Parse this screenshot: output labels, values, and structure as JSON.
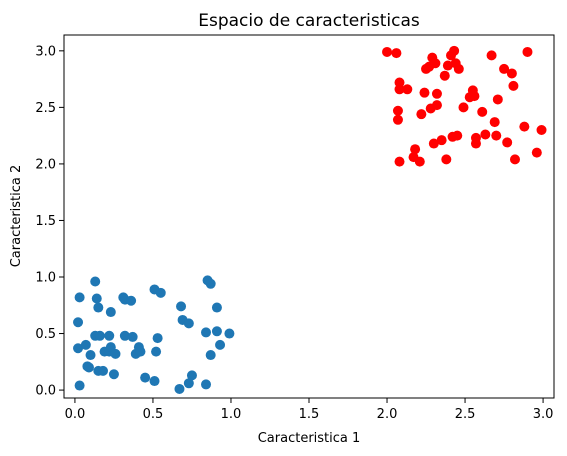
{
  "chart_data": {
    "type": "scatter",
    "title": "Espacio de caracteristicas",
    "xlabel": "Caracteristica 1",
    "ylabel": "Caracteristica 2",
    "xlim": [
      -0.07,
      3.07
    ],
    "ylim": [
      -0.07,
      3.14
    ],
    "xticks": [
      "0.0",
      "0.5",
      "1.0",
      "1.5",
      "2.0",
      "2.5",
      "3.0"
    ],
    "yticks": [
      "0.0",
      "0.5",
      "1.0",
      "1.5",
      "2.0",
      "2.5",
      "3.0"
    ],
    "grid": false,
    "series": [
      {
        "color": "#1f77b4",
        "points": [
          [
            0.03,
            0.82
          ],
          [
            0.02,
            0.6
          ],
          [
            0.02,
            0.37
          ],
          [
            0.07,
            0.4
          ],
          [
            0.08,
            0.21
          ],
          [
            0.09,
            0.2
          ],
          [
            0.1,
            0.31
          ],
          [
            0.03,
            0.04
          ],
          [
            0.13,
            0.96
          ],
          [
            0.14,
            0.81
          ],
          [
            0.15,
            0.73
          ],
          [
            0.13,
            0.48
          ],
          [
            0.16,
            0.48
          ],
          [
            0.15,
            0.17
          ],
          [
            0.18,
            0.17
          ],
          [
            0.19,
            0.34
          ],
          [
            0.22,
            0.34
          ],
          [
            0.22,
            0.48
          ],
          [
            0.23,
            0.69
          ],
          [
            0.23,
            0.38
          ],
          [
            0.25,
            0.14
          ],
          [
            0.26,
            0.32
          ],
          [
            0.31,
            0.82
          ],
          [
            0.32,
            0.48
          ],
          [
            0.32,
            0.8
          ],
          [
            0.36,
            0.79
          ],
          [
            0.37,
            0.47
          ],
          [
            0.39,
            0.32
          ],
          [
            0.41,
            0.38
          ],
          [
            0.42,
            0.34
          ],
          [
            0.45,
            0.11
          ],
          [
            0.51,
            0.08
          ],
          [
            0.51,
            0.89
          ],
          [
            0.52,
            0.34
          ],
          [
            0.55,
            0.86
          ],
          [
            0.53,
            0.46
          ],
          [
            0.67,
            0.01
          ],
          [
            0.68,
            0.74
          ],
          [
            0.69,
            0.62
          ],
          [
            0.73,
            0.59
          ],
          [
            0.73,
            0.06
          ],
          [
            0.75,
            0.13
          ],
          [
            0.84,
            0.51
          ],
          [
            0.84,
            0.05
          ],
          [
            0.85,
            0.97
          ],
          [
            0.87,
            0.94
          ],
          [
            0.87,
            0.31
          ],
          [
            0.91,
            0.52
          ],
          [
            0.91,
            0.73
          ],
          [
            0.93,
            0.4
          ],
          [
            0.99,
            0.5
          ]
        ]
      },
      {
        "color": "#ff0000",
        "points": [
          [
            2.0,
            2.99
          ],
          [
            2.06,
            2.98
          ],
          [
            2.08,
            2.72
          ],
          [
            2.08,
            2.66
          ],
          [
            2.07,
            2.47
          ],
          [
            2.07,
            2.39
          ],
          [
            2.08,
            2.02
          ],
          [
            2.13,
            2.66
          ],
          [
            2.18,
            2.13
          ],
          [
            2.17,
            2.06
          ],
          [
            2.21,
            2.02
          ],
          [
            2.22,
            2.44
          ],
          [
            2.24,
            2.63
          ],
          [
            2.25,
            2.84
          ],
          [
            2.27,
            2.86
          ],
          [
            2.28,
            2.49
          ],
          [
            2.29,
            2.94
          ],
          [
            2.3,
            2.18
          ],
          [
            2.31,
            2.89
          ],
          [
            2.32,
            2.52
          ],
          [
            2.32,
            2.62
          ],
          [
            2.35,
            2.21
          ],
          [
            2.37,
            2.78
          ],
          [
            2.38,
            2.04
          ],
          [
            2.39,
            2.87
          ],
          [
            2.41,
            2.96
          ],
          [
            2.42,
            2.24
          ],
          [
            2.43,
            3.0
          ],
          [
            2.44,
            2.89
          ],
          [
            2.45,
            2.25
          ],
          [
            2.46,
            2.84
          ],
          [
            2.49,
            2.5
          ],
          [
            2.53,
            2.59
          ],
          [
            2.55,
            2.65
          ],
          [
            2.56,
            2.6
          ],
          [
            2.57,
            2.23
          ],
          [
            2.57,
            2.18
          ],
          [
            2.61,
            2.46
          ],
          [
            2.63,
            2.26
          ],
          [
            2.67,
            2.96
          ],
          [
            2.69,
            2.37
          ],
          [
            2.7,
            2.25
          ],
          [
            2.71,
            2.57
          ],
          [
            2.75,
            2.84
          ],
          [
            2.77,
            2.19
          ],
          [
            2.8,
            2.8
          ],
          [
            2.81,
            2.69
          ],
          [
            2.82,
            2.04
          ],
          [
            2.88,
            2.33
          ],
          [
            2.9,
            2.99
          ],
          [
            2.96,
            2.1
          ],
          [
            2.99,
            2.3
          ]
        ]
      }
    ]
  }
}
